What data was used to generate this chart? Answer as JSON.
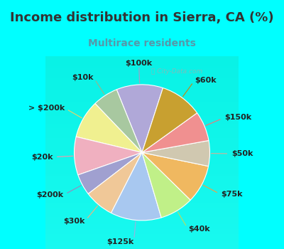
{
  "title": "Income distribution in Sierra, CA (%)",
  "subtitle": "Multirace residents",
  "watermark": "Ⓢ City-Data.com",
  "background_color": "#00ffff",
  "chart_bg_gradient_top": "#e8f5f0",
  "chart_bg_gradient_bottom": "#d0ede0",
  "title_color": "#333333",
  "subtitle_color": "#5599aa",
  "title_fontsize": 13,
  "subtitle_fontsize": 10,
  "label_fontsize": 8,
  "startangle": 72,
  "labels": [
    "$100k",
    "$10k",
    "> $200k",
    "$20k",
    "$200k",
    "$30k",
    "$125k",
    "$40k",
    "$75k",
    "$50k",
    "$150k",
    "$60k"
  ],
  "values": [
    11,
    6,
    9,
    9,
    5,
    7,
    12,
    8,
    9,
    6,
    7,
    10
  ],
  "colors": [
    "#b0a8d8",
    "#a8c8a0",
    "#f0f090",
    "#f0b0c0",
    "#a0a0d0",
    "#f0c898",
    "#a8c8f0",
    "#c0f088",
    "#f0b860",
    "#d0c8b0",
    "#f09090",
    "#c8a030"
  ],
  "line_colors": [
    "#a0a0c8",
    "#90b890",
    "#d8d870",
    "#e0a0b0",
    "#9090c0",
    "#e0b888",
    "#90b8e0",
    "#a8e070",
    "#e0a850",
    "#c0b8a0",
    "#e08080",
    "#b89020"
  ]
}
